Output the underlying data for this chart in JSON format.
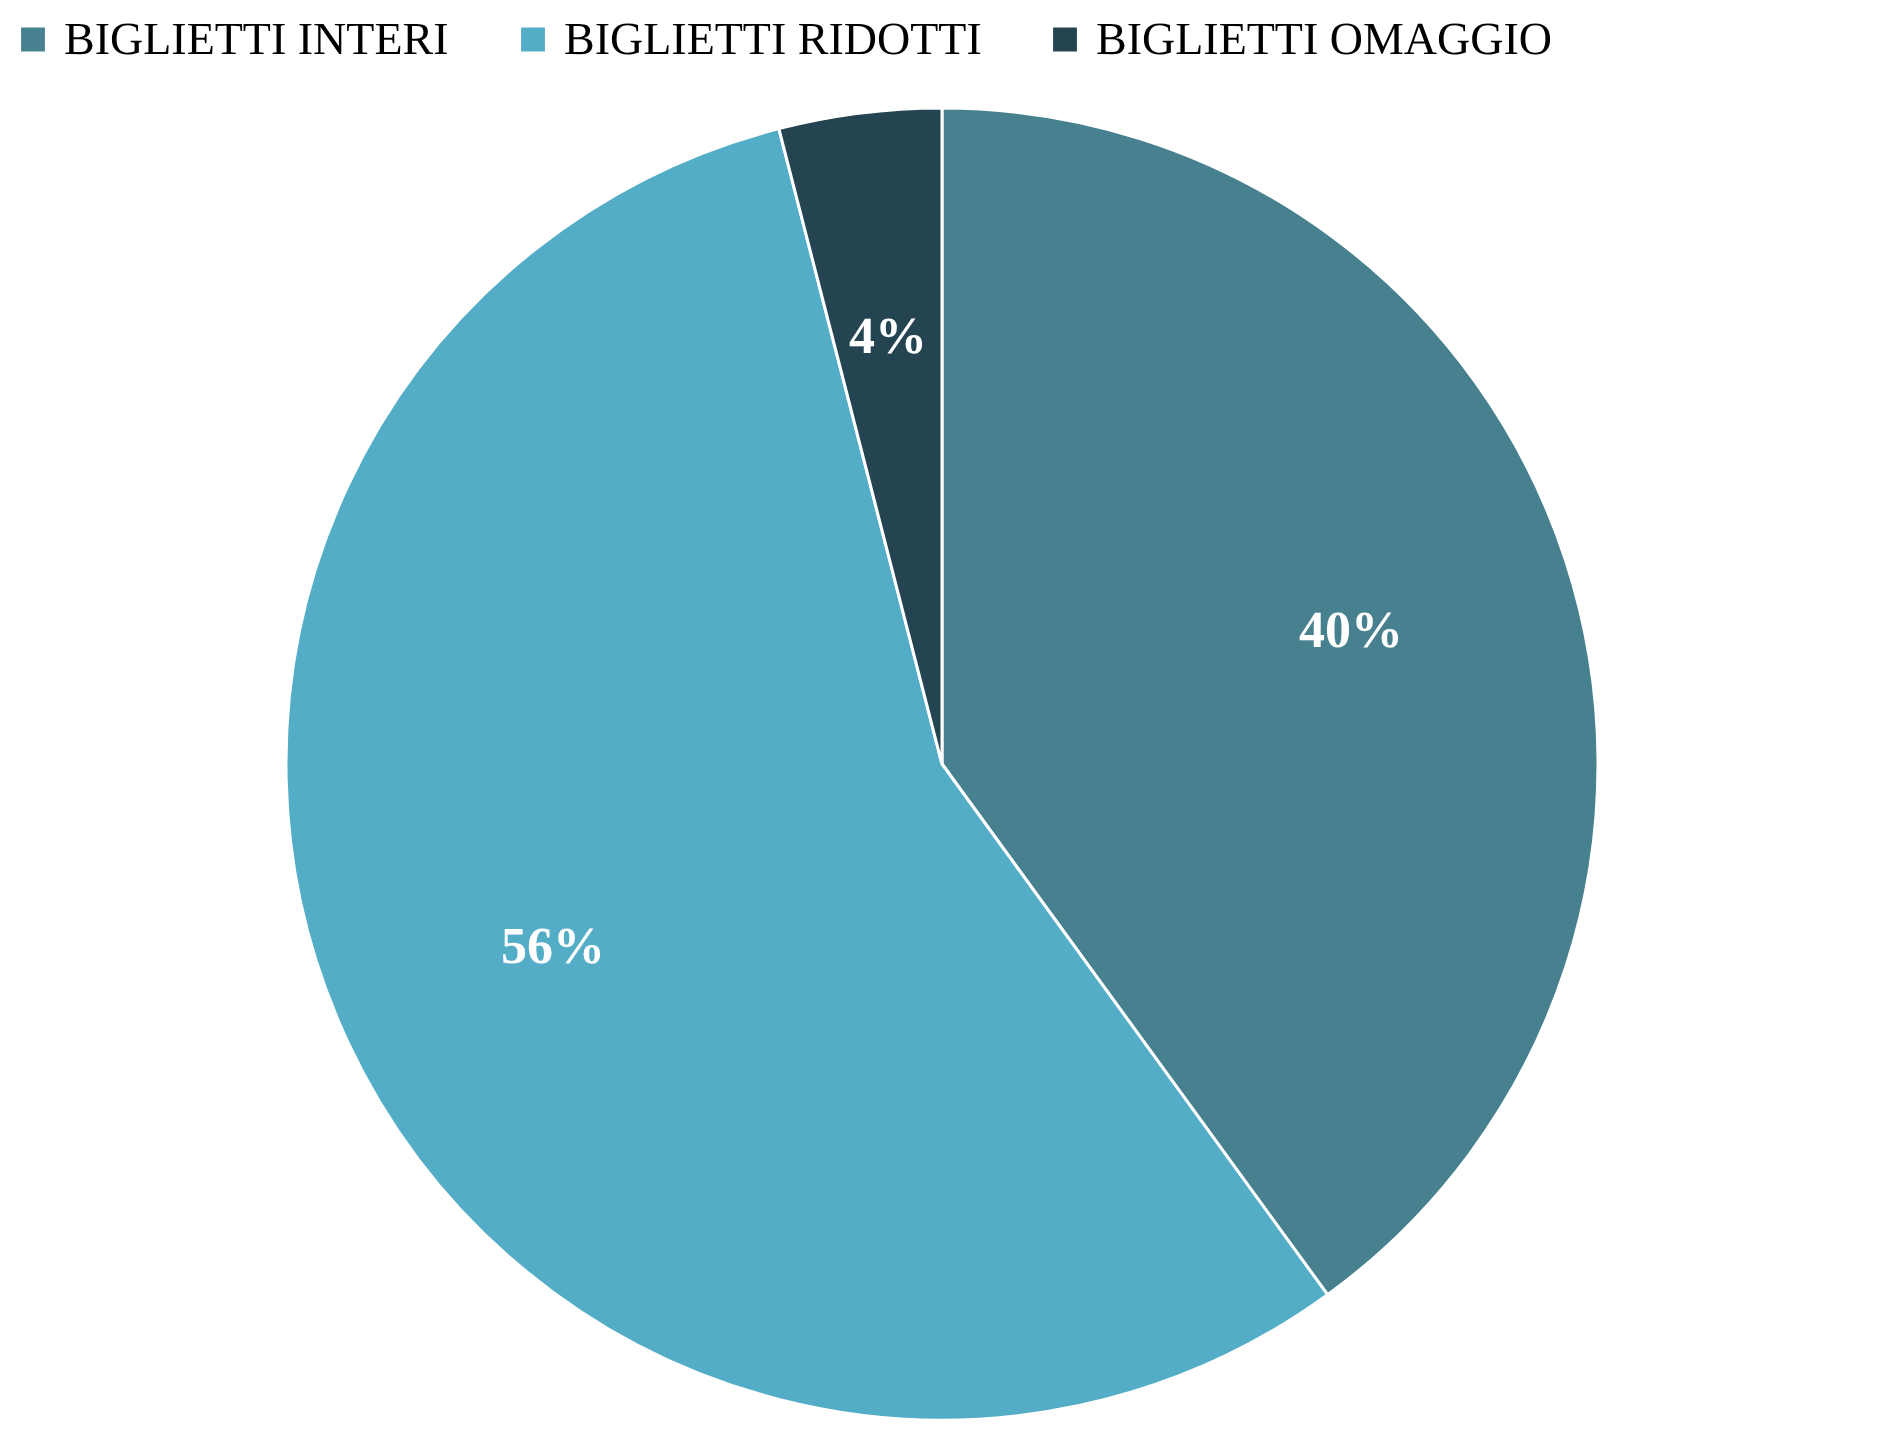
{
  "chart_data": {
    "type": "pie",
    "categories": [
      "BIGLIETTI INTERI",
      "BIGLIETTI RIDOTTI",
      "BIGLIETTI OMAGGIO"
    ],
    "values": [
      40,
      56,
      4
    ],
    "colors": [
      "#47808f",
      "#54adc7",
      "#234450"
    ],
    "value_labels": [
      "40%",
      "56%",
      "4%"
    ],
    "legend": "top"
  }
}
